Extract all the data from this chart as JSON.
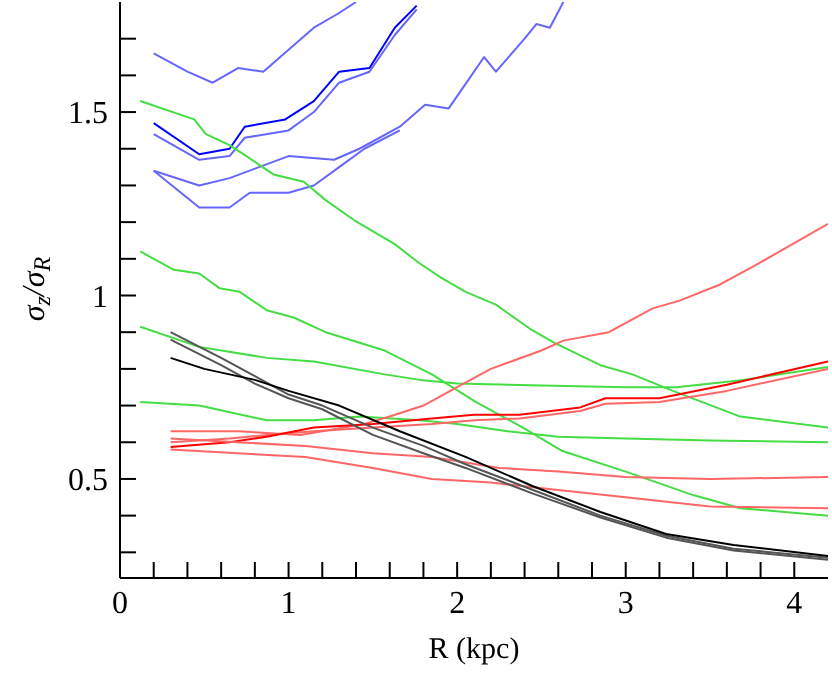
{
  "chart_data": {
    "type": "line",
    "xlabel": "R (kpc)",
    "ylabel": "σ$_{z}$/σ$_{R}$",
    "xlim": [
      0,
      4.2
    ],
    "ylim": [
      0.23,
      1.8
    ],
    "xticks": [
      0,
      {
        "value": 0.2,
        "label": null
      },
      {
        "value": 0.4,
        "label": null
      },
      {
        "value": 0.6,
        "label": null
      },
      {
        "value": 0.8,
        "label": null
      },
      1,
      {
        "value": 1.2,
        "label": null
      },
      {
        "value": 1.4,
        "label": null
      },
      {
        "value": 1.6,
        "label": null
      },
      {
        "value": 1.8,
        "label": null
      },
      2,
      {
        "value": 2.2,
        "label": null
      },
      {
        "value": 2.4,
        "label": null
      },
      {
        "value": 2.6,
        "label": null
      },
      {
        "value": 2.8,
        "label": null
      },
      3,
      {
        "value": 3.2,
        "label": null
      },
      {
        "value": 3.4,
        "label": null
      },
      {
        "value": 3.6,
        "label": null
      },
      {
        "value": 3.8,
        "label": null
      },
      4
    ],
    "yticks": [
      {
        "value": 0.3,
        "label": null
      },
      {
        "value": 0.4,
        "label": null
      },
      {
        "value": 0.5,
        "label": "0.5"
      },
      {
        "value": 0.6,
        "label": null
      },
      {
        "value": 0.7,
        "label": null
      },
      {
        "value": 0.8,
        "label": null
      },
      {
        "value": 0.9,
        "label": null
      },
      1,
      {
        "value": 1.1,
        "label": null
      },
      {
        "value": 1.2,
        "label": null
      },
      {
        "value": 1.3,
        "label": null
      },
      {
        "value": 1.4,
        "label": null
      },
      1.5,
      {
        "value": 1.6,
        "label": null
      },
      {
        "value": 1.7,
        "label": null
      }
    ],
    "grid": false,
    "legend": false,
    "marker": "none",
    "line_style": "solid",
    "series": [
      {
        "color": "#6666ff",
        "x": [
          0.2,
          0.4,
          0.55,
          0.7,
          0.85,
          1.0,
          1.15,
          1.3,
          1.4
        ],
        "values": [
          1.66,
          1.61,
          1.58,
          1.62,
          1.61,
          1.67,
          1.73,
          1.77,
          1.8
        ]
      },
      {
        "color": "#0000ff",
        "x": [
          0.2,
          0.47,
          0.65,
          0.74,
          0.98,
          1.15,
          1.3,
          1.48,
          1.63,
          1.76
        ],
        "values": [
          1.47,
          1.385,
          1.4,
          1.46,
          1.48,
          1.53,
          1.61,
          1.62,
          1.73,
          1.79
        ]
      },
      {
        "color": "#6666ff",
        "x": [
          0.2,
          0.47,
          0.65,
          0.74,
          1.0,
          1.15,
          1.3,
          1.48,
          1.63,
          1.76
        ],
        "values": [
          1.44,
          1.37,
          1.38,
          1.43,
          1.45,
          1.5,
          1.58,
          1.61,
          1.71,
          1.78
        ]
      },
      {
        "color": "#6666ff",
        "x": [
          0.2,
          0.47,
          0.65,
          1.0,
          1.27,
          1.42,
          1.66,
          1.81,
          1.95,
          2.04,
          2.16,
          2.23,
          2.4,
          2.47,
          2.55,
          2.63
        ],
        "values": [
          1.34,
          1.3,
          1.32,
          1.38,
          1.37,
          1.4,
          1.46,
          1.52,
          1.51,
          1.57,
          1.65,
          1.61,
          1.7,
          1.74,
          1.73,
          1.8
        ]
      },
      {
        "color": "#6666ff",
        "x": [
          0.2,
          0.47,
          0.65,
          0.77,
          1.0,
          1.15,
          1.3,
          1.45,
          1.66
        ],
        "values": [
          1.34,
          1.24,
          1.24,
          1.28,
          1.28,
          1.3,
          1.35,
          1.4,
          1.45
        ]
      },
      {
        "color": "#44dd44",
        "x": [
          0.12,
          0.44,
          0.51,
          0.65,
          0.75,
          0.91,
          1.09,
          1.22,
          1.39,
          1.63,
          1.77,
          1.9,
          2.05,
          2.23,
          2.43,
          2.58,
          2.85,
          3.04,
          3.28,
          3.68,
          4.2
        ],
        "values": [
          1.53,
          1.48,
          1.44,
          1.41,
          1.38,
          1.33,
          1.31,
          1.26,
          1.205,
          1.14,
          1.09,
          1.05,
          1.01,
          0.975,
          0.91,
          0.87,
          0.81,
          0.785,
          0.74,
          0.67,
          0.64
        ]
      },
      {
        "color": "#44dd44",
        "x": [
          0.12,
          0.32,
          0.47,
          0.59,
          0.71,
          0.87,
          1.03,
          1.22,
          1.57,
          1.85,
          2.11,
          2.39,
          2.62,
          3.0,
          3.4,
          3.68,
          4.2
        ],
        "values": [
          1.12,
          1.07,
          1.06,
          1.02,
          1.01,
          0.96,
          0.94,
          0.9,
          0.85,
          0.785,
          0.71,
          0.64,
          0.577,
          0.52,
          0.456,
          0.42,
          0.4
        ]
      },
      {
        "color": "#44dd44",
        "x": [
          0.12,
          0.47,
          0.87,
          1.15,
          1.57,
          1.78,
          2.0,
          2.5,
          3.0,
          3.3,
          3.7,
          4.2
        ],
        "values": [
          0.915,
          0.86,
          0.83,
          0.82,
          0.785,
          0.77,
          0.76,
          0.755,
          0.75,
          0.75,
          0.77,
          0.805
        ]
      },
      {
        "color": "#44dd44",
        "x": [
          0.12,
          0.47,
          0.87,
          1.15,
          1.42,
          1.78,
          2.0,
          2.3,
          2.6,
          3.0,
          3.5,
          4.2
        ],
        "values": [
          0.71,
          0.7,
          0.66,
          0.66,
          0.67,
          0.66,
          0.65,
          0.63,
          0.615,
          0.61,
          0.605,
          0.6
        ]
      },
      {
        "color": "#ff6666",
        "x": [
          0.3,
          0.7,
          1.07,
          1.45,
          1.6,
          1.8,
          2.0,
          2.2,
          2.5,
          2.63,
          2.9,
          3.16,
          3.32,
          3.56,
          3.76,
          4.2
        ],
        "values": [
          0.63,
          0.63,
          0.62,
          0.65,
          0.67,
          0.7,
          0.75,
          0.8,
          0.85,
          0.877,
          0.9,
          0.965,
          0.986,
          1.03,
          1.08,
          1.195
        ]
      },
      {
        "color": "#ff6666",
        "x": [
          0.3,
          0.65,
          0.87,
          1.15,
          1.5,
          1.85,
          2.1,
          2.37,
          2.73,
          2.88,
          3.2,
          3.6,
          4.2
        ],
        "values": [
          0.6,
          0.61,
          0.62,
          0.63,
          0.64,
          0.65,
          0.66,
          0.665,
          0.685,
          0.705,
          0.71,
          0.74,
          0.8
        ]
      },
      {
        "color": "#ff0000",
        "x": [
          0.3,
          0.65,
          0.87,
          1.15,
          1.5,
          1.85,
          2.1,
          2.37,
          2.73,
          2.88,
          3.2,
          3.6,
          4.2
        ],
        "values": [
          0.587,
          0.6,
          0.615,
          0.64,
          0.65,
          0.665,
          0.675,
          0.675,
          0.695,
          0.72,
          0.72,
          0.757,
          0.82
        ]
      },
      {
        "color": "#ff6666",
        "x": [
          0.3,
          0.7,
          1.1,
          1.5,
          1.85,
          2.25,
          2.6,
          3.0,
          3.5,
          4.2
        ],
        "values": [
          0.61,
          0.6,
          0.59,
          0.57,
          0.56,
          0.53,
          0.52,
          0.505,
          0.5,
          0.505
        ]
      },
      {
        "color": "#ff6666",
        "x": [
          0.3,
          0.7,
          1.1,
          1.5,
          1.85,
          2.2,
          2.6,
          3.0,
          3.5,
          4.2
        ],
        "values": [
          0.58,
          0.57,
          0.56,
          0.53,
          0.5,
          0.49,
          0.47,
          0.45,
          0.425,
          0.42
        ]
      },
      {
        "color": "#555555",
        "x": [
          0.3,
          0.6,
          0.8,
          1.0,
          1.2,
          1.5,
          1.8,
          2.05,
          2.45,
          2.85,
          3.24,
          3.64,
          4.2
        ],
        "values": [
          0.9,
          0.83,
          0.78,
          0.73,
          0.7,
          0.64,
          0.59,
          0.54,
          0.47,
          0.4,
          0.345,
          0.31,
          0.285
        ]
      },
      {
        "color": "#555555",
        "x": [
          0.3,
          0.6,
          0.8,
          1.0,
          1.2,
          1.5,
          1.8,
          2.05,
          2.45,
          2.85,
          3.24,
          3.64,
          4.2
        ],
        "values": [
          0.88,
          0.81,
          0.76,
          0.72,
          0.69,
          0.62,
          0.57,
          0.53,
          0.46,
          0.395,
          0.34,
          0.305,
          0.28
        ]
      },
      {
        "color": "#000000",
        "x": [
          0.3,
          0.5,
          0.8,
          1.0,
          1.3,
          1.66,
          2.05,
          2.45,
          2.85,
          3.24,
          3.64,
          4.2
        ],
        "values": [
          0.83,
          0.8,
          0.77,
          0.74,
          0.7,
          0.63,
          0.56,
          0.48,
          0.41,
          0.35,
          0.32,
          0.29
        ]
      }
    ]
  }
}
